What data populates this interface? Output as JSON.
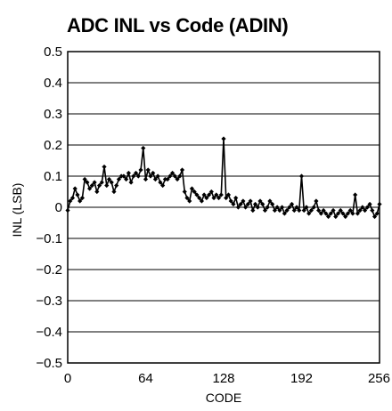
{
  "chart_data": {
    "type": "line",
    "title": "ADC INL vs Code (ADIN)",
    "xlabel": "CODE",
    "ylabel": "INL (LSB)",
    "xlim": [
      0,
      256
    ],
    "ylim": [
      -0.5,
      0.5
    ],
    "xticks": [
      0,
      64,
      128,
      192,
      256
    ],
    "xtick_labels": [
      "0",
      "64",
      "128",
      "192",
      "256"
    ],
    "yticks": [
      0.5,
      0.4,
      0.3,
      0.2,
      0.1,
      0,
      -0.1,
      -0.2,
      -0.3,
      -0.4,
      -0.5
    ],
    "ytick_labels": [
      "0.5",
      "0.4",
      "0.3",
      "0.2",
      "0.1",
      "0",
      "−0.1",
      "−0.2",
      "−0.3",
      "−0.4",
      "−0.5"
    ],
    "grid": "horizontal",
    "markers": "diamond",
    "series": [
      {
        "color": "#000000",
        "x": [
          0,
          2,
          4,
          6,
          8,
          10,
          12,
          14,
          16,
          18,
          20,
          22,
          24,
          26,
          28,
          30,
          32,
          34,
          36,
          38,
          40,
          42,
          44,
          46,
          48,
          50,
          52,
          54,
          56,
          58,
          60,
          62,
          64,
          66,
          68,
          70,
          72,
          74,
          76,
          78,
          80,
          82,
          84,
          86,
          88,
          90,
          92,
          94,
          96,
          98,
          100,
          102,
          104,
          106,
          108,
          110,
          112,
          114,
          116,
          118,
          120,
          122,
          124,
          126,
          128,
          130,
          132,
          134,
          136,
          138,
          140,
          142,
          144,
          146,
          148,
          150,
          152,
          154,
          156,
          158,
          160,
          162,
          164,
          166,
          168,
          170,
          172,
          174,
          176,
          178,
          180,
          182,
          184,
          186,
          188,
          190,
          192,
          194,
          196,
          198,
          200,
          202,
          204,
          206,
          208,
          210,
          212,
          214,
          216,
          218,
          220,
          222,
          224,
          226,
          228,
          230,
          232,
          234,
          236,
          238,
          240,
          242,
          244,
          246,
          248,
          250,
          252,
          254,
          256
        ],
        "y": [
          -0.01,
          0.02,
          0.03,
          0.06,
          0.04,
          0.02,
          0.03,
          0.09,
          0.08,
          0.06,
          0.07,
          0.08,
          0.05,
          0.07,
          0.08,
          0.13,
          0.07,
          0.09,
          0.08,
          0.05,
          0.07,
          0.09,
          0.1,
          0.1,
          0.09,
          0.11,
          0.08,
          0.1,
          0.11,
          0.1,
          0.12,
          0.19,
          0.09,
          0.12,
          0.1,
          0.11,
          0.09,
          0.1,
          0.08,
          0.07,
          0.09,
          0.09,
          0.1,
          0.11,
          0.1,
          0.09,
          0.1,
          0.12,
          0.05,
          0.03,
          0.02,
          0.06,
          0.05,
          0.04,
          0.03,
          0.02,
          0.04,
          0.03,
          0.04,
          0.05,
          0.03,
          0.04,
          0.03,
          0.04,
          0.22,
          0.03,
          0.04,
          0.02,
          0.01,
          0.03,
          0.0,
          0.01,
          0.02,
          0.0,
          0.01,
          0.02,
          -0.01,
          0.01,
          0.0,
          0.02,
          0.01,
          -0.01,
          0.0,
          0.02,
          0.01,
          -0.01,
          0.0,
          -0.01,
          0.0,
          -0.02,
          -0.01,
          0.0,
          0.01,
          -0.01,
          0.0,
          -0.01,
          0.1,
          -0.01,
          0.0,
          -0.02,
          -0.01,
          0.0,
          0.02,
          -0.01,
          -0.02,
          -0.01,
          -0.02,
          -0.03,
          -0.02,
          -0.01,
          -0.03,
          -0.02,
          -0.01,
          -0.02,
          -0.03,
          -0.02,
          -0.01,
          -0.02,
          0.04,
          -0.02,
          -0.01,
          0.0,
          -0.01,
          0.0,
          0.01,
          -0.01,
          -0.03,
          -0.02,
          0.01
        ]
      }
    ]
  }
}
